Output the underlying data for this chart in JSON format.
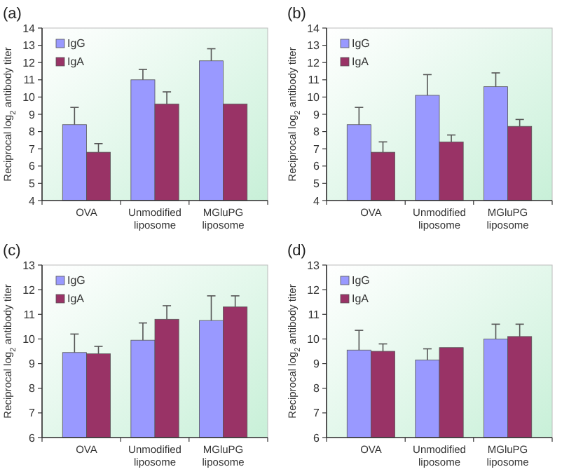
{
  "chart_data": [
    {
      "type": "bar",
      "title": "(a)",
      "ylabel": "Reciprocal log$_{2}$ antibody titer",
      "categories": [
        "OVA",
        "Unmodified liposome",
        "MGluPG liposome"
      ],
      "ylim": [
        4,
        14
      ],
      "yticks": [
        4,
        5,
        6,
        7,
        8,
        9,
        10,
        11,
        12,
        13,
        14
      ],
      "grid": false,
      "legend": "top left",
      "series": [
        {
          "name": "IgG",
          "color": "#9999ff",
          "values": [
            8.4,
            11.0,
            12.1
          ],
          "errors": [
            [
              8.4,
              9.4
            ],
            [
              11.0,
              11.6
            ],
            [
              12.1,
              12.8
            ]
          ]
        },
        {
          "name": "IgA",
          "color": "#993366",
          "values": [
            6.8,
            9.6,
            9.6
          ],
          "errors": [
            [
              6.8,
              7.3
            ],
            [
              9.6,
              10.3
            ],
            null
          ]
        }
      ]
    },
    {
      "type": "bar",
      "title": "(b)",
      "ylabel": "Reciprocal log$_{2}$ antibody titer",
      "categories": [
        "OVA",
        "Unmodified liposome",
        "MGluPG liposome"
      ],
      "ylim": [
        4,
        14
      ],
      "yticks": [
        4,
        5,
        6,
        7,
        8,
        9,
        10,
        11,
        12,
        13,
        14
      ],
      "grid": false,
      "legend": "top left",
      "series": [
        {
          "name": "IgG",
          "color": "#9999ff",
          "values": [
            8.4,
            10.1,
            10.6
          ],
          "errors": [
            [
              8.4,
              9.4
            ],
            [
              10.1,
              11.3
            ],
            [
              10.6,
              11.4
            ]
          ]
        },
        {
          "name": "IgA",
          "color": "#993366",
          "values": [
            6.8,
            7.4,
            8.3
          ],
          "errors": [
            [
              6.8,
              7.4
            ],
            [
              7.4,
              7.8
            ],
            [
              8.3,
              8.7
            ]
          ]
        }
      ]
    },
    {
      "type": "bar",
      "title": "(c)",
      "ylabel": "Reciprocal log$_{2}$ antibody titer",
      "categories": [
        "OVA",
        "Unmodified liposome",
        "MGluPG liposome"
      ],
      "ylim": [
        6,
        13
      ],
      "yticks": [
        6,
        7,
        8,
        9,
        10,
        11,
        12,
        13
      ],
      "grid": false,
      "legend": "top left",
      "series": [
        {
          "name": "IgG",
          "color": "#9999ff",
          "values": [
            9.45,
            9.95,
            10.75
          ],
          "errors": [
            [
              9.45,
              10.2
            ],
            [
              9.95,
              10.65
            ],
            [
              10.75,
              11.75
            ]
          ]
        },
        {
          "name": "IgA",
          "color": "#993366",
          "values": [
            9.4,
            10.8,
            11.3
          ],
          "errors": [
            [
              9.4,
              9.7
            ],
            [
              10.8,
              11.35
            ],
            [
              11.3,
              11.75
            ]
          ]
        }
      ]
    },
    {
      "type": "bar",
      "title": "(d)",
      "ylabel": "Reciprocal log$_{2}$ antibody titer",
      "categories": [
        "OVA",
        "Unmodified liposome",
        "MGluPG liposome"
      ],
      "ylim": [
        6,
        13
      ],
      "yticks": [
        6,
        7,
        8,
        9,
        10,
        11,
        12,
        13
      ],
      "grid": false,
      "legend": "top left",
      "series": [
        {
          "name": "IgG",
          "color": "#9999ff",
          "values": [
            9.55,
            9.15,
            10.0
          ],
          "errors": [
            [
              9.55,
              10.35
            ],
            [
              9.15,
              9.6
            ],
            [
              10.0,
              10.6
            ]
          ]
        },
        {
          "name": "IgA",
          "color": "#993366",
          "values": [
            9.5,
            9.65,
            10.1
          ],
          "errors": [
            [
              9.5,
              9.8
            ],
            null,
            [
              10.1,
              10.6
            ]
          ]
        }
      ]
    }
  ]
}
